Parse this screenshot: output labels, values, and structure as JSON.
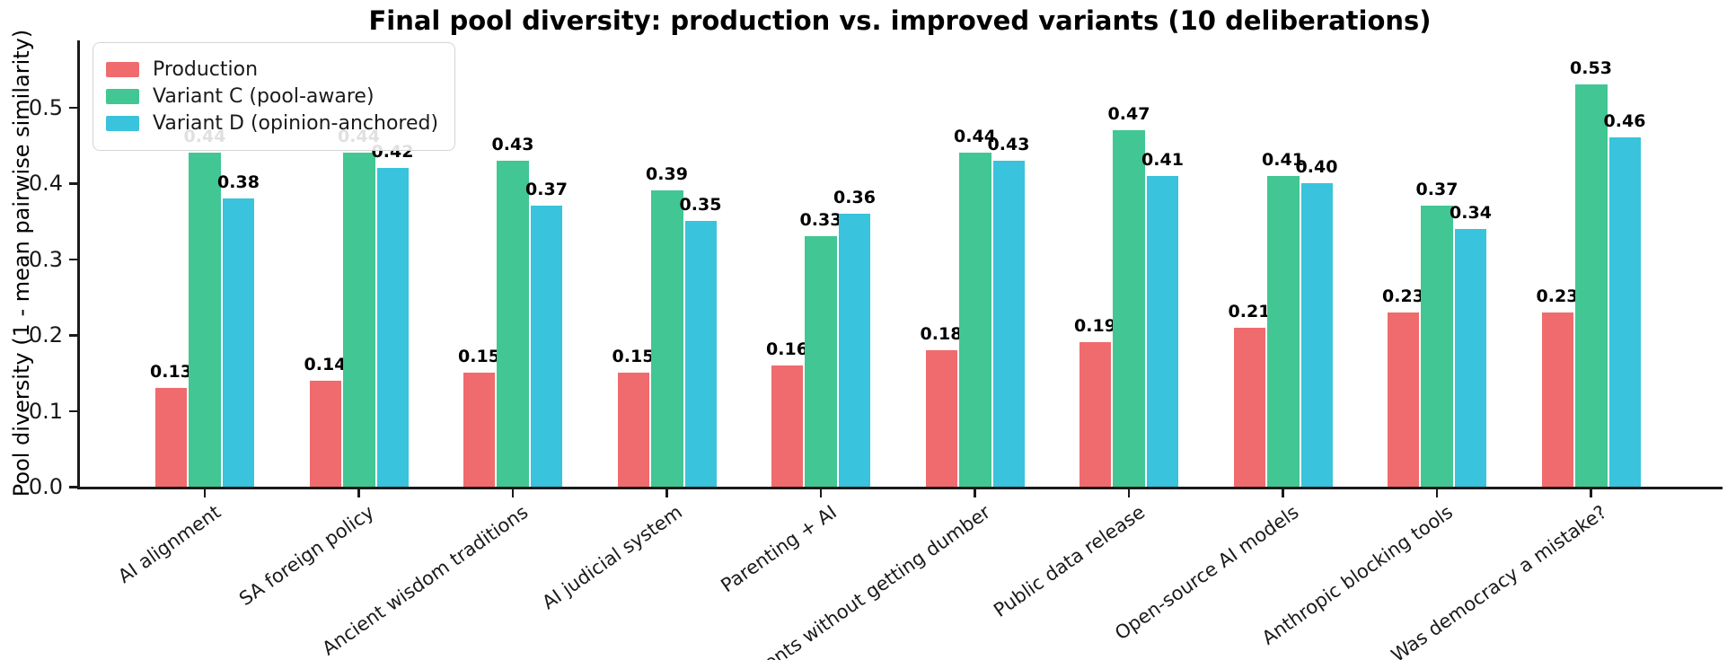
{
  "figure": {
    "background": "#ffffff",
    "axis_color": "#1a1a1a"
  },
  "chart_data": {
    "type": "bar",
    "title": "Final pool diversity: production vs. improved variants (10 deliberations)",
    "ylabel": "Pool diversity (1 - mean pairwise similarity)",
    "xlabel": "",
    "yticks": [
      0.0,
      0.1,
      0.2,
      0.3,
      0.4,
      0.5
    ],
    "ylim": [
      0,
      0.588
    ],
    "grid": false,
    "legend_position": "upper left",
    "value_labels_shown": true,
    "categories": [
      "AI alignment",
      "SA foreign policy",
      "Ancient wisdom traditions",
      "AI judicial system",
      "Parenting + AI",
      "Agents without getting dumber",
      "Public data release",
      "Open-source AI models",
      "Anthropic blocking tools",
      "Was democracy a mistake?"
    ],
    "series": [
      {
        "name": "Production",
        "color": "#F06B6D",
        "values": [
          0.13,
          0.14,
          0.15,
          0.15,
          0.16,
          0.18,
          0.19,
          0.21,
          0.23,
          0.23
        ]
      },
      {
        "name": "Variant C (pool-aware)",
        "color": "#41C694",
        "values": [
          0.44,
          0.44,
          0.43,
          0.39,
          0.33,
          0.44,
          0.47,
          0.41,
          0.37,
          0.53
        ]
      },
      {
        "name": "Variant D (opinion-anchored)",
        "color": "#39C3DC",
        "values": [
          0.38,
          0.42,
          0.37,
          0.35,
          0.36,
          0.43,
          0.41,
          0.4,
          0.34,
          0.46
        ]
      }
    ]
  }
}
